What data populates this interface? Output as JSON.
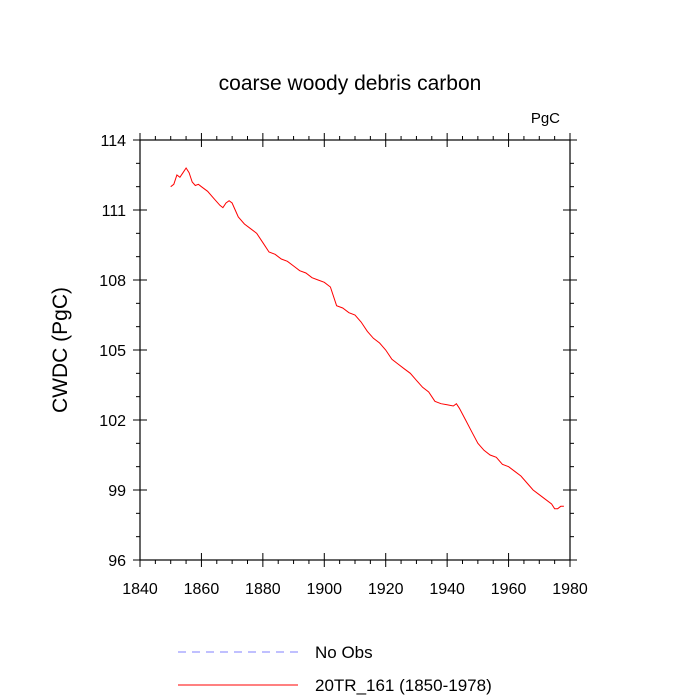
{
  "chart_data": {
    "type": "line",
    "title": "coarse woody debris carbon",
    "units_label": "PgC",
    "ylabel": "CWDC  (PgC)",
    "xlabel": "",
    "xlim": [
      1840,
      1980
    ],
    "ylim": [
      96,
      114
    ],
    "xticks": [
      1840,
      1860,
      1880,
      1900,
      1920,
      1940,
      1960,
      1980
    ],
    "xtick_labels": [
      "1840",
      "1860",
      "1880",
      "1900",
      "1920",
      "1940",
      "1960",
      "1980"
    ],
    "yticks": [
      96,
      99,
      102,
      105,
      108,
      111,
      114
    ],
    "ytick_labels": [
      "96",
      "99",
      "102",
      "105",
      "108",
      "111",
      "114"
    ],
    "legend_position": "bottom",
    "series": [
      {
        "name": "No Obs",
        "color": "#8080ff",
        "dash": "dashed",
        "x": [],
        "y": []
      },
      {
        "name": "20TR_161 (1850-1978)",
        "color": "#ff0000",
        "dash": "solid",
        "x": [
          1850,
          1851,
          1852,
          1853,
          1854,
          1855,
          1856,
          1857,
          1858,
          1859,
          1860,
          1862,
          1864,
          1866,
          1867,
          1868,
          1869,
          1870,
          1871,
          1872,
          1874,
          1876,
          1878,
          1880,
          1882,
          1884,
          1886,
          1888,
          1890,
          1892,
          1894,
          1896,
          1898,
          1900,
          1902,
          1904,
          1906,
          1908,
          1910,
          1912,
          1914,
          1916,
          1918,
          1920,
          1922,
          1924,
          1926,
          1928,
          1930,
          1932,
          1934,
          1936,
          1938,
          1940,
          1942,
          1943,
          1944,
          1946,
          1948,
          1950,
          1952,
          1954,
          1956,
          1958,
          1960,
          1962,
          1964,
          1966,
          1968,
          1970,
          1972,
          1974,
          1975,
          1976,
          1977,
          1978
        ],
        "y": [
          112.0,
          112.1,
          112.5,
          112.4,
          112.6,
          112.8,
          112.6,
          112.2,
          112.05,
          112.1,
          112.0,
          111.8,
          111.5,
          111.2,
          111.1,
          111.3,
          111.4,
          111.3,
          111.0,
          110.7,
          110.4,
          110.2,
          110.0,
          109.6,
          109.2,
          109.1,
          108.9,
          108.8,
          108.6,
          108.4,
          108.3,
          108.1,
          108.0,
          107.9,
          107.7,
          106.9,
          106.8,
          106.6,
          106.5,
          106.2,
          105.8,
          105.5,
          105.3,
          105.0,
          104.6,
          104.4,
          104.2,
          104.0,
          103.7,
          103.4,
          103.2,
          102.8,
          102.7,
          102.65,
          102.6,
          102.7,
          102.5,
          102.0,
          101.5,
          101.0,
          100.7,
          100.5,
          100.4,
          100.1,
          100.0,
          99.8,
          99.6,
          99.3,
          99.0,
          98.8,
          98.6,
          98.4,
          98.2,
          98.2,
          98.3,
          98.3
        ]
      }
    ]
  }
}
